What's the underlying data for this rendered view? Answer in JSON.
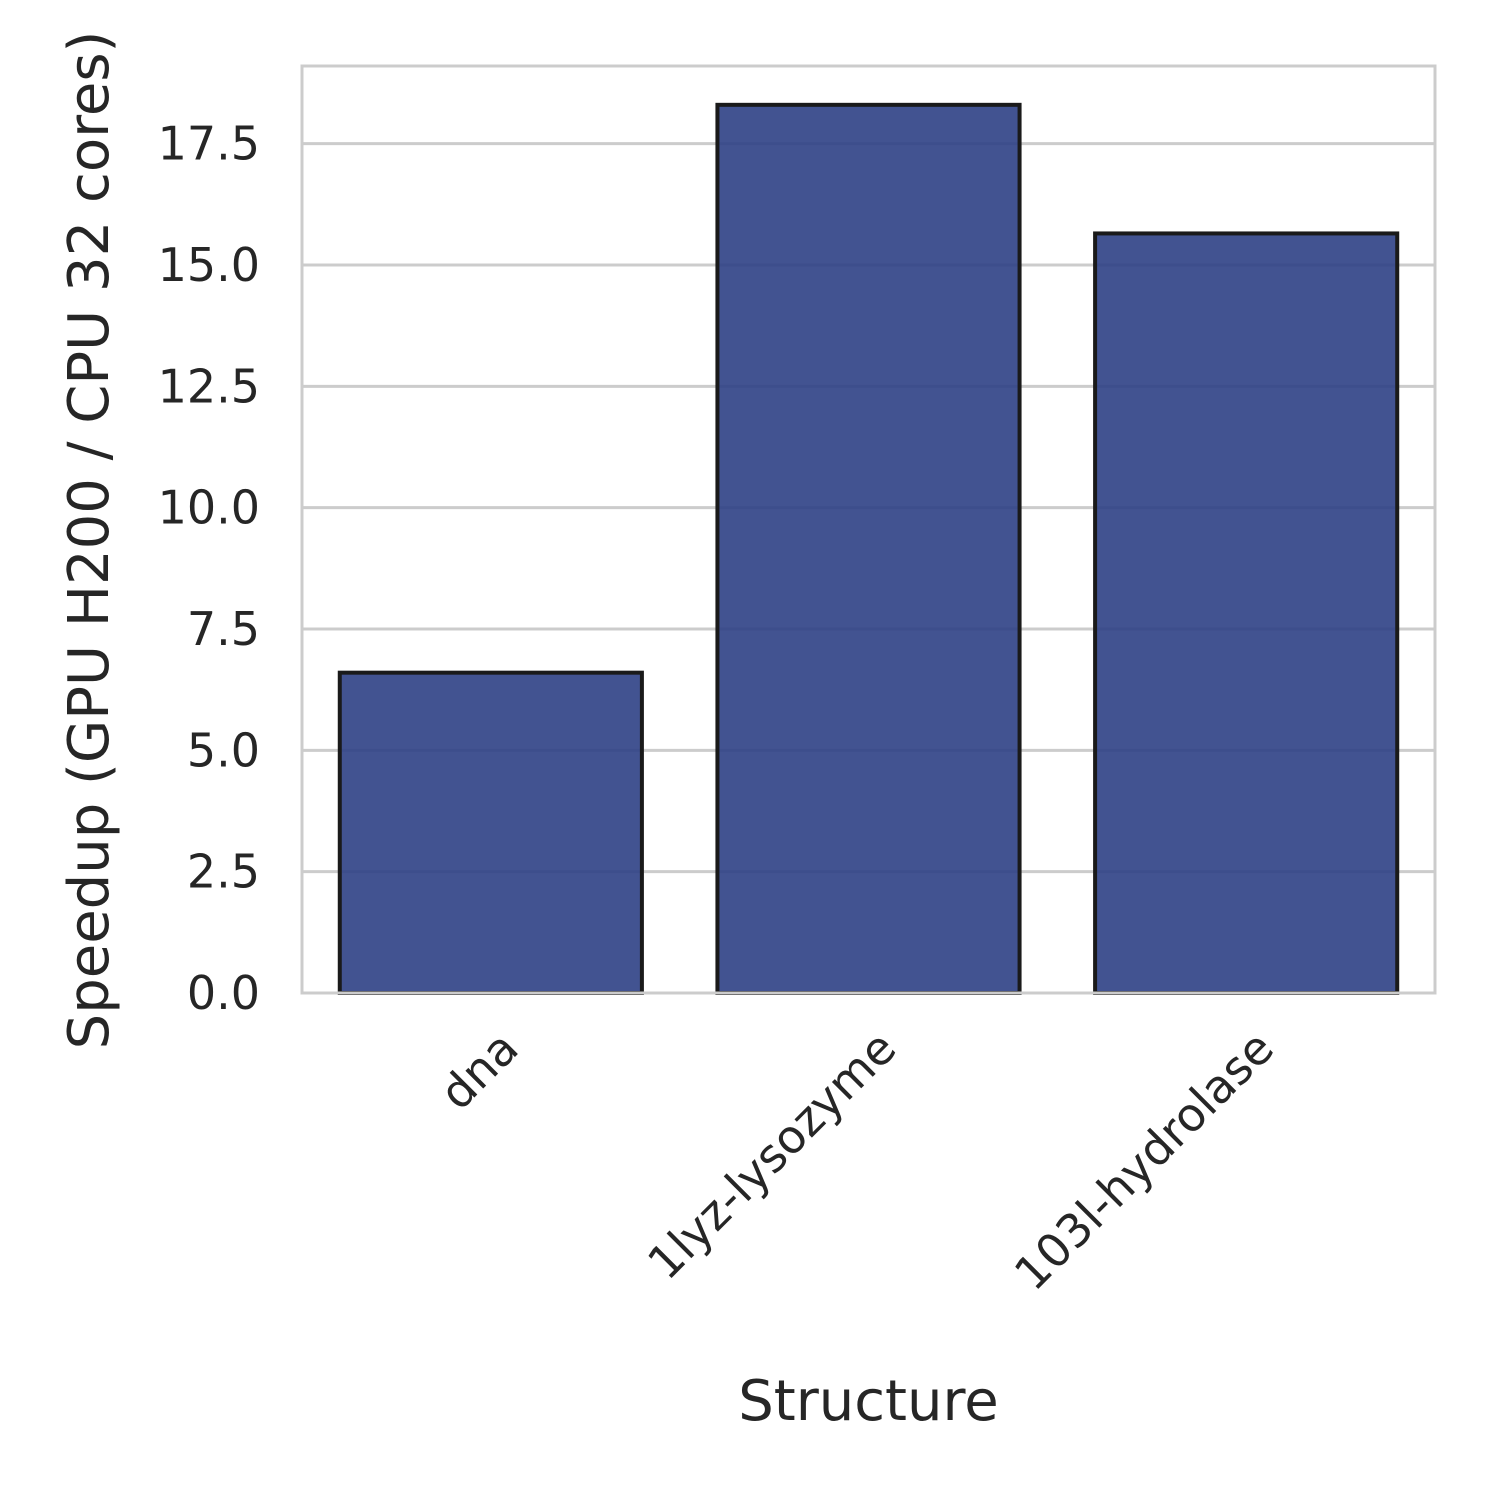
{
  "chart_data": {
    "type": "bar",
    "categories": [
      "dna",
      "1lyz-lysozyme",
      "103l-hydrolase"
    ],
    "values": [
      6.6,
      18.3,
      15.65
    ],
    "xlabel": "Structure",
    "ylabel": "Speedup (GPU H200 / CPU 32 cores)",
    "ylim": [
      0,
      19.1
    ],
    "yticks": [
      0.0,
      2.5,
      5.0,
      7.5,
      10.0,
      12.5,
      15.0,
      17.5
    ],
    "ytick_labels": [
      "0.0",
      "2.5",
      "5.0",
      "7.5",
      "10.0",
      "12.5",
      "15.0",
      "17.5"
    ],
    "grid": "horizontal",
    "colors": {
      "bar": "#2e4085",
      "bar_edge": "#1a1a1a",
      "grid": "#cccccc",
      "frame": "#cccccc"
    }
  }
}
